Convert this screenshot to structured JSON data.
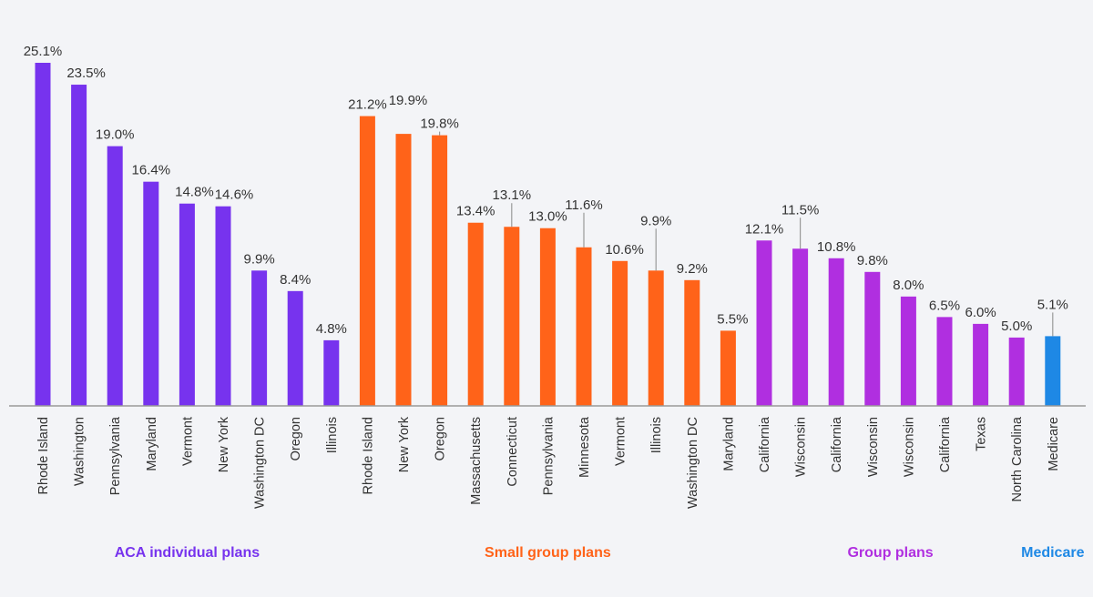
{
  "chart_data": {
    "type": "bar",
    "title": "",
    "xlabel": "",
    "ylabel": "",
    "ylim": [
      0,
      26
    ],
    "grid": false,
    "legend": "none",
    "groups": [
      {
        "name": "ACA individual plans",
        "color": "#7733ee",
        "categories": [
          "Rhode Island",
          "Washington",
          "Pennsylvania",
          "Maryland",
          "Vermont",
          "New York",
          "Washington DC",
          "Oregon",
          "Illinois"
        ],
        "values": [
          25.1,
          23.5,
          19.0,
          16.4,
          14.8,
          14.6,
          9.9,
          8.4,
          4.8
        ],
        "labels": [
          "25.1%",
          "23.5%",
          "19.0%",
          "16.4%",
          "14.8%",
          "14.6%",
          "9.9%",
          "8.4%",
          "4.8%"
        ]
      },
      {
        "name": "Small group plans",
        "color": "#ff6319",
        "categories": [
          "Rhode Island",
          "New York",
          "Oregon",
          "Massachusetts",
          "Connecticut",
          "Pennsylvania",
          "Minnesota",
          "Vermont",
          "Illinois",
          "Washington DC",
          "Maryland"
        ],
        "values": [
          21.2,
          19.9,
          19.8,
          13.4,
          13.1,
          13.0,
          11.6,
          10.6,
          9.9,
          9.2,
          5.5
        ],
        "labels": [
          "21.2%",
          "19.9%",
          "19.8%",
          "13.4%",
          "13.1%",
          "13.0%",
          "11.6%",
          "10.6%",
          "9.9%",
          "9.2%",
          "5.5%"
        ]
      },
      {
        "name": "Group plans",
        "color": "#b02fe0",
        "categories": [
          "California",
          "Wisconsin",
          "California",
          "Wisconsin",
          "Wisconsin",
          "California",
          "Texas",
          "North Carolina"
        ],
        "values": [
          12.1,
          11.5,
          10.8,
          9.8,
          8.0,
          6.5,
          6.0,
          5.0
        ],
        "labels": [
          "12.1%",
          "11.5%",
          "10.8%",
          "9.8%",
          "8.0%",
          "6.5%",
          "6.0%",
          "5.0%"
        ]
      },
      {
        "name": "Medicare",
        "color": "#1e88e5",
        "categories": [
          "Medicare"
        ],
        "values": [
          5.1
        ],
        "labels": [
          "5.1%"
        ]
      }
    ]
  }
}
